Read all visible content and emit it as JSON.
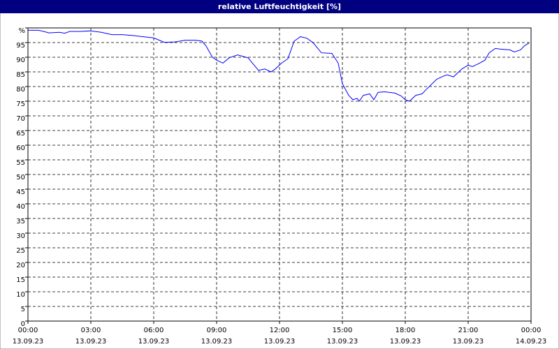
{
  "chart_data": {
    "type": "line",
    "title": "relative Luftfeuchtigkeit [%]",
    "xlim": [
      0,
      24
    ],
    "xticks": [
      {
        "value": 0,
        "label": "00:00",
        "date": "13.09.23"
      },
      {
        "value": 3,
        "label": "03:00",
        "date": "13.09.23"
      },
      {
        "value": 6,
        "label": "06:00",
        "date": "13.09.23"
      },
      {
        "value": 9,
        "label": "09:00",
        "date": "13.09.23"
      },
      {
        "value": 12,
        "label": "12:00",
        "date": "13.09.23"
      },
      {
        "value": 15,
        "label": "15:00",
        "date": "13.09.23"
      },
      {
        "value": 18,
        "label": "18:00",
        "date": "13.09.23"
      },
      {
        "value": 21,
        "label": "21:00",
        "date": "13.09.23"
      },
      {
        "value": 24,
        "label": "00:00",
        "date": "14.09.23"
      }
    ],
    "ylim": [
      0,
      100
    ],
    "yticks": [
      0,
      5,
      10,
      15,
      20,
      25,
      30,
      35,
      40,
      45,
      50,
      55,
      60,
      65,
      70,
      75,
      80,
      85,
      90,
      95,
      {
        "value": 100,
        "label": "%"
      }
    ],
    "grid": true,
    "series": [
      {
        "color": "#0000ff",
        "x": [
          0,
          0.5,
          0.75,
          1.0,
          1.5,
          1.75,
          2.0,
          2.5,
          3.0,
          3.5,
          4.0,
          4.5,
          5.0,
          5.5,
          6.0,
          6.5,
          7.0,
          7.5,
          8.0,
          8.3,
          8.5,
          8.8,
          9.0,
          9.3,
          9.6,
          10.0,
          10.5,
          11.0,
          11.3,
          11.6,
          11.8,
          12.1,
          12.4,
          12.7,
          13.0,
          13.3,
          13.6,
          14.0,
          14.5,
          14.8,
          15.0,
          15.3,
          15.5,
          15.7,
          15.8,
          16.0,
          16.3,
          16.5,
          16.7,
          17.0,
          17.5,
          17.8,
          18.0,
          18.2,
          18.5,
          18.8,
          19.0,
          19.5,
          19.8,
          20.0,
          20.3,
          20.7,
          21.0,
          21.2,
          21.5,
          21.8,
          22.0,
          22.3,
          22.5,
          23.0,
          23.2,
          23.5,
          23.7,
          23.9
        ],
        "values": [
          99.2,
          99.2,
          98.8,
          98.3,
          98.5,
          98.2,
          98.8,
          98.8,
          99.0,
          98.5,
          97.7,
          97.7,
          97.4,
          97.0,
          96.6,
          95.1,
          95.2,
          95.8,
          95.8,
          95.5,
          93.8,
          90.0,
          89.0,
          88.0,
          89.8,
          90.8,
          89.8,
          85.5,
          86.0,
          85.0,
          86.0,
          88.0,
          89.5,
          95.5,
          97.0,
          96.5,
          95.0,
          91.5,
          91.3,
          88.0,
          81.0,
          77.0,
          75.5,
          76.0,
          75.0,
          77.0,
          77.5,
          75.5,
          78.0,
          78.2,
          77.8,
          76.8,
          75.5,
          75.0,
          77.0,
          77.5,
          79.0,
          82.5,
          83.5,
          84.0,
          83.3,
          86.0,
          87.3,
          86.8,
          87.8,
          89.0,
          91.5,
          93.0,
          92.8,
          92.5,
          91.8,
          92.5,
          94.0,
          94.8
        ]
      }
    ]
  }
}
